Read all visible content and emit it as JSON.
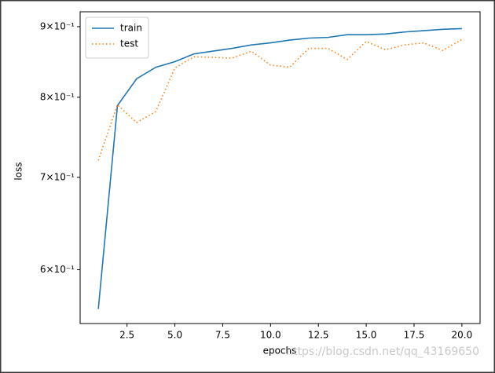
{
  "chart_data": {
    "type": "line",
    "x": [
      1,
      2,
      3,
      4,
      5,
      6,
      7,
      8,
      9,
      10,
      11,
      12,
      13,
      14,
      15,
      16,
      17,
      18,
      19,
      20
    ],
    "series": [
      {
        "name": "train",
        "color": "#1f77b4",
        "linestyle": "solid",
        "values": [
          0.562,
          0.789,
          0.825,
          0.841,
          0.849,
          0.86,
          0.864,
          0.868,
          0.873,
          0.876,
          0.88,
          0.883,
          0.884,
          0.888,
          0.888,
          0.889,
          0.892,
          0.894,
          0.896,
          0.897
        ]
      },
      {
        "name": "test",
        "color": "#ff7f0e",
        "linestyle": "dotted",
        "values": [
          0.72,
          0.79,
          0.767,
          0.781,
          0.84,
          0.856,
          0.855,
          0.854,
          0.864,
          0.844,
          0.841,
          0.868,
          0.868,
          0.852,
          0.878,
          0.866,
          0.873,
          0.876,
          0.865,
          0.881
        ]
      }
    ],
    "xlabel": "epochs",
    "ylabel": "loss",
    "xlim": [
      0.05,
      20.95
    ],
    "ylim": [
      0.5485,
      0.9226
    ],
    "yscale": "log",
    "xticks": [
      2.5,
      {
        "value": 5,
        "label": "5.0"
      },
      7.5,
      {
        "value": 10,
        "label": "10.0"
      },
      12.5,
      {
        "value": 15,
        "label": "15.0"
      },
      17.5,
      {
        "value": 20,
        "label": "20.0"
      }
    ],
    "yticks": [
      {
        "value": 0.6,
        "label": "6×10⁻¹"
      },
      {
        "value": 0.7,
        "label": "7×10⁻¹"
      },
      {
        "value": 0.8,
        "label": "8×10⁻¹"
      },
      {
        "value": 0.9,
        "label": "9×10⁻¹"
      }
    ],
    "legend": "upper left",
    "watermark": "https://blog.csdn.net/qq_43169650"
  }
}
